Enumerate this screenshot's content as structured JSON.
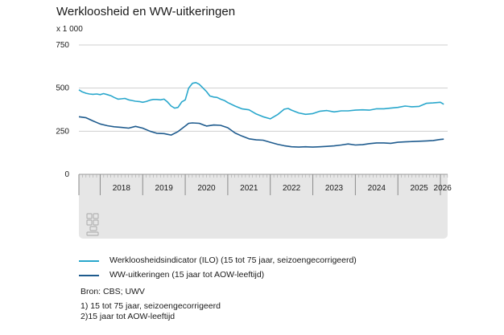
{
  "title": "Werkloosheid en WW-uitkeringen",
  "unit_label": "x 1 000",
  "chart_data": {
    "type": "line",
    "title": "Werkloosheid en WW-uitkeringen",
    "ylabel": "x 1 000",
    "ylim": [
      0,
      750
    ],
    "yticks": [
      0,
      250,
      500,
      750
    ],
    "xlim": [
      2017.5,
      2026.17
    ],
    "xticks": [
      "2018",
      "2019",
      "2020",
      "2021",
      "2022",
      "2023",
      "2024",
      "2025",
      "2026"
    ],
    "grid": "horizontal",
    "series": [
      {
        "name": "Werkloosheidsindicator (ILO) (15 tot 75 jaar, seizoengecorrigeerd)",
        "color": "#29a7cc",
        "x": [
          2017.5,
          2017.58,
          2017.67,
          2017.75,
          2017.83,
          2017.92,
          2018.0,
          2018.08,
          2018.17,
          2018.25,
          2018.33,
          2018.42,
          2018.5,
          2018.58,
          2018.67,
          2018.75,
          2018.83,
          2018.92,
          2019.0,
          2019.08,
          2019.17,
          2019.25,
          2019.33,
          2019.42,
          2019.5,
          2019.58,
          2019.67,
          2019.75,
          2019.83,
          2019.92,
          2020.0,
          2020.08,
          2020.17,
          2020.25,
          2020.33,
          2020.42,
          2020.5,
          2020.58,
          2020.67,
          2020.75,
          2020.83,
          2020.92,
          2021.0,
          2021.17,
          2021.33,
          2021.5,
          2021.67,
          2021.83,
          2022.0,
          2022.17,
          2022.33,
          2022.42,
          2022.5,
          2022.67,
          2022.83,
          2023.0,
          2023.17,
          2023.33,
          2023.5,
          2023.67,
          2023.83,
          2024.0,
          2024.17,
          2024.33,
          2024.5,
          2024.67,
          2024.83,
          2025.0,
          2025.17,
          2025.33,
          2025.5,
          2025.67,
          2025.83,
          2026.0,
          2026.08
        ],
        "values": [
          490,
          478,
          470,
          466,
          464,
          466,
          462,
          468,
          462,
          456,
          446,
          436,
          438,
          440,
          432,
          428,
          424,
          422,
          418,
          422,
          430,
          434,
          434,
          432,
          436,
          420,
          396,
          384,
          388,
          420,
          432,
          500,
          528,
          532,
          522,
          500,
          480,
          454,
          448,
          446,
          436,
          428,
          416,
          396,
          380,
          374,
          350,
          334,
          322,
          346,
          378,
          382,
          372,
          356,
          348,
          352,
          366,
          370,
          362,
          368,
          368,
          372,
          374,
          372,
          380,
          380,
          384,
          388,
          396,
          392,
          394,
          412,
          414,
          418,
          406
        ]
      },
      {
        "name": "WW-uitkeringen (15 jaar tot AOW-leeftijd)",
        "color": "#1e5b8e",
        "x": [
          2017.5,
          2017.67,
          2017.83,
          2018.0,
          2018.17,
          2018.33,
          2018.5,
          2018.67,
          2018.83,
          2019.0,
          2019.17,
          2019.33,
          2019.5,
          2019.58,
          2019.67,
          2019.83,
          2020.0,
          2020.08,
          2020.17,
          2020.33,
          2020.5,
          2020.67,
          2020.83,
          2021.0,
          2021.17,
          2021.33,
          2021.5,
          2021.67,
          2021.83,
          2022.0,
          2022.17,
          2022.33,
          2022.5,
          2022.67,
          2022.83,
          2023.0,
          2023.17,
          2023.33,
          2023.5,
          2023.67,
          2023.83,
          2024.0,
          2024.17,
          2024.33,
          2024.5,
          2024.67,
          2024.83,
          2025.0,
          2025.17,
          2025.33,
          2025.5,
          2025.67,
          2025.83,
          2026.0,
          2026.08
        ],
        "values": [
          334,
          328,
          310,
          292,
          282,
          276,
          272,
          268,
          278,
          268,
          250,
          238,
          236,
          232,
          228,
          248,
          280,
          296,
          298,
          296,
          280,
          286,
          284,
          270,
          240,
          222,
          206,
          200,
          198,
          186,
          174,
          166,
          160,
          158,
          160,
          158,
          160,
          162,
          165,
          170,
          176,
          170,
          172,
          178,
          182,
          182,
          180,
          186,
          188,
          190,
          192,
          194,
          196,
          202,
          204
        ]
      }
    ]
  },
  "logo": "cbs-logo",
  "source_text": "Bron: CBS; UWV",
  "notes": [
    "1) 15 tot 75 jaar, seizoengecorrigeerd",
    "2)15 jaar tot AOW-leeftijd"
  ]
}
